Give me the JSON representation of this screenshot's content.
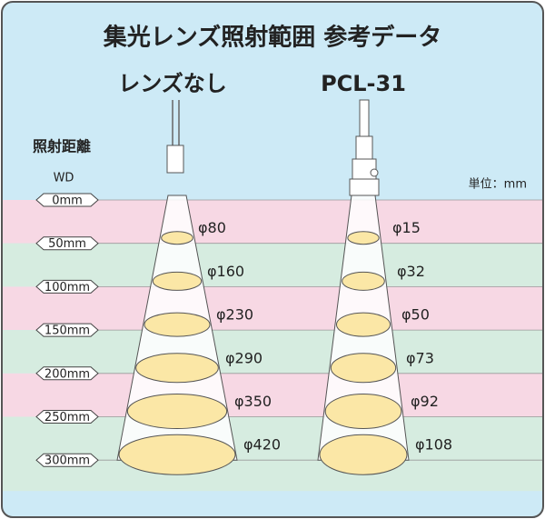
{
  "header": {
    "title": "集光レンズ照射範囲 参考データ"
  },
  "axis": {
    "title": "照射距離",
    "subtitle": "WD",
    "unit": "単位：mm",
    "rows": [
      "0mm",
      "50mm",
      "100mm",
      "150mm",
      "200mm",
      "250mm",
      "300mm"
    ]
  },
  "columns": [
    {
      "title": "レンズなし",
      "spots": [
        "φ80",
        "φ160",
        "φ230",
        "φ290",
        "φ350",
        "φ420"
      ]
    },
    {
      "title": "PCL-31",
      "spots": [
        "φ15",
        "φ32",
        "φ50",
        "φ73",
        "φ92",
        "φ108"
      ]
    }
  ]
}
